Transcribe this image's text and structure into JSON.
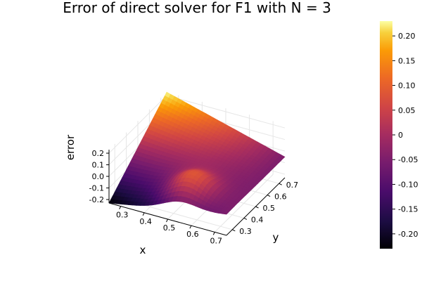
{
  "chart_data": {
    "type": "surface",
    "title": "Error of direct solver for F1 with N = 3",
    "xlabel": "x",
    "ylabel": "y",
    "zlabel": "error",
    "x_ticks": [
      "0.3",
      "0.4",
      "0.5",
      "0.6",
      "0.7"
    ],
    "y_ticks": [
      "0.3",
      "0.4",
      "0.5",
      "0.6",
      "0.7"
    ],
    "z_ticks": [
      "-0.2",
      "-0.1",
      "0.0",
      "0.1",
      "0.2"
    ],
    "colorbar_ticks": [
      "0.20",
      "0.15",
      "0.10",
      "0.05",
      "0",
      "-0.05",
      "-0.10",
      "-0.15",
      "-0.20"
    ],
    "xlim": [
      0.25,
      0.75
    ],
    "ylim": [
      0.25,
      0.75
    ],
    "zlim": [
      -0.23,
      0.23
    ],
    "colormap": "inferno",
    "grid": true,
    "corner_values": {
      "x_low_y_low": -0.23,
      "x_low_y_high": 0.23,
      "x_high_y_low": -0.05,
      "x_high_y_high": -0.05
    },
    "local_peak": {
      "x": 0.55,
      "y": 0.35,
      "z": 0.08
    }
  }
}
